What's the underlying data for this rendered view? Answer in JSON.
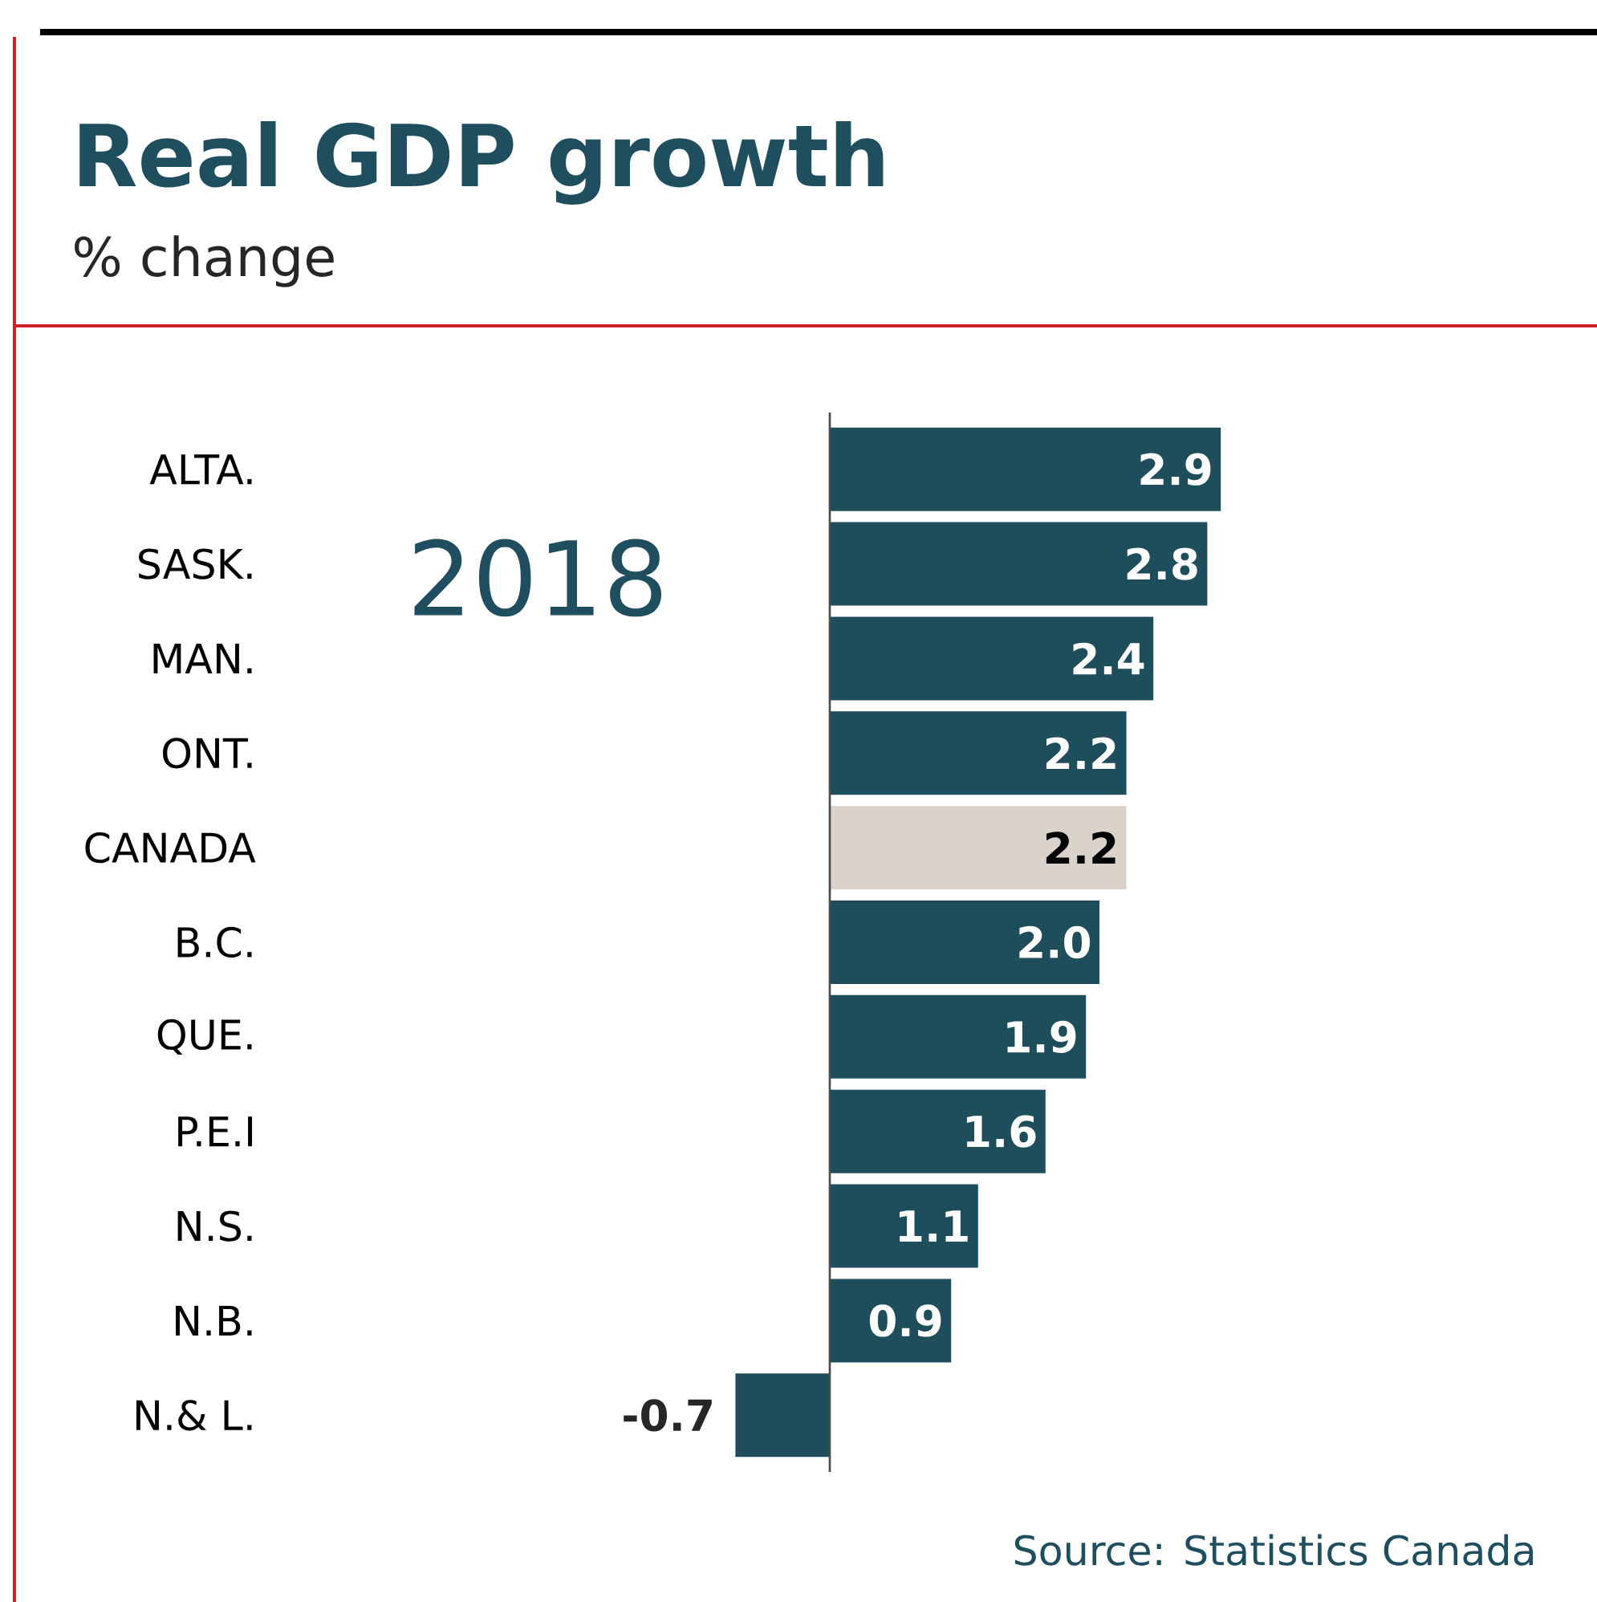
{
  "chart_data": {
    "type": "bar",
    "orientation": "horizontal",
    "title": "Real GDP growth",
    "subtitle": "% change",
    "categories": [
      "ALTA.",
      "SASK.",
      "MAN.",
      "ONT.",
      "CANADA",
      "B.C.",
      "QUE.",
      "P.E.I",
      "N.S.",
      "N.B.",
      "N.& L."
    ],
    "values": [
      2.9,
      2.8,
      2.4,
      2.2,
      2.2,
      2.0,
      1.9,
      1.6,
      1.1,
      0.9,
      -0.7
    ],
    "value_labels": [
      "2.9",
      "2.8",
      "2.4",
      "2.2",
      "2.2",
      "2.0",
      "1.9",
      "1.6",
      "1.1",
      "0.9",
      "-0.7"
    ],
    "colors": [
      "#1e4d5c",
      "#1e4d5c",
      "#1e4d5c",
      "#1e4d5c",
      "#d9d3cb",
      "#1e4d5c",
      "#1e4d5c",
      "#1e4d5c",
      "#1e4d5c",
      "#1e4d5c",
      "#1e4d5c"
    ],
    "annotations": [
      "2018",
      "Source: Statistics Canada"
    ]
  }
}
